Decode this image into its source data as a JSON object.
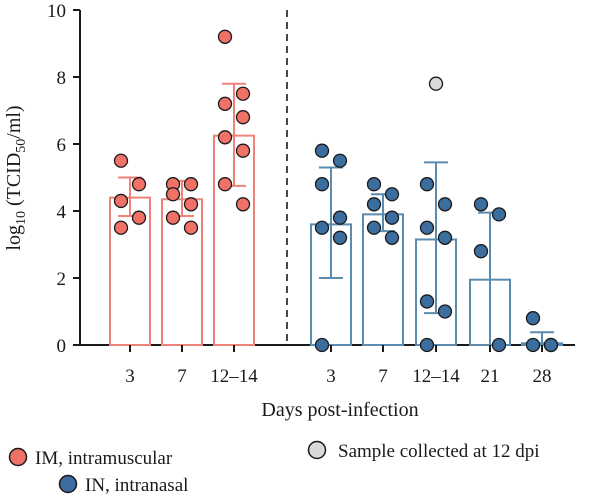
{
  "chart_data": {
    "type": "bar",
    "ylabel": "log10 (TCID50/ml)",
    "xlabel": "Days post-infection",
    "ylim": [
      0,
      10
    ],
    "yticks": [
      0,
      2,
      4,
      6,
      8,
      10
    ],
    "grid": false,
    "divider": "dashed vertical line between IM and IN groups",
    "colors": {
      "im_dot": "#f07267",
      "im_bar": "#ef8279",
      "in_dot": "#3b6e9e",
      "in_bar": "#5a8bb0",
      "special_dot": "#d9d9d9"
    },
    "groups": [
      {
        "route": "IM",
        "day": "3",
        "mean": 4.4,
        "sd_low": 3.85,
        "sd_high": 5.0,
        "points": [
          5.5,
          4.8,
          4.3,
          3.8,
          3.5
        ]
      },
      {
        "route": "IM",
        "day": "7",
        "mean": 4.35,
        "sd_low": 3.85,
        "sd_high": 4.9,
        "points": [
          4.8,
          4.8,
          4.5,
          4.2,
          3.8,
          3.5
        ]
      },
      {
        "route": "IM",
        "day": "12–14",
        "mean": 6.25,
        "sd_low": 4.75,
        "sd_high": 7.8,
        "points": [
          9.2,
          7.5,
          7.2,
          6.8,
          6.2,
          5.8,
          4.8,
          4.2
        ]
      },
      {
        "route": "IN",
        "day": "3",
        "mean": 3.6,
        "sd_low": 2.0,
        "sd_high": 5.3,
        "points": [
          5.8,
          5.5,
          4.8,
          3.8,
          3.5,
          3.2,
          0.0
        ]
      },
      {
        "route": "IN",
        "day": "7",
        "mean": 3.9,
        "sd_low": 3.4,
        "sd_high": 4.5,
        "points": [
          4.8,
          4.5,
          4.2,
          3.8,
          3.5,
          3.2
        ]
      },
      {
        "route": "IN",
        "day": "12–14",
        "mean": 3.15,
        "sd_low": 0.95,
        "sd_high": 5.45,
        "points": [
          4.8,
          4.2,
          3.5,
          3.2,
          1.3,
          1.0,
          0.0
        ],
        "special_points": [
          7.8
        ]
      },
      {
        "route": "IN",
        "day": "21",
        "mean": 1.95,
        "sd_low": 0.0,
        "sd_high": 3.95,
        "points": [
          4.2,
          3.9,
          2.8,
          0.0
        ]
      },
      {
        "route": "IN",
        "day": "28",
        "mean": 0.05,
        "sd_low": 0.0,
        "sd_high": 0.38,
        "points": [
          0.8,
          0.0,
          0.0,
          0.0
        ]
      }
    ]
  },
  "legend": {
    "im": "IM, intramuscular",
    "in": "IN, intranasal",
    "special": "Sample collected at 12 dpi"
  }
}
